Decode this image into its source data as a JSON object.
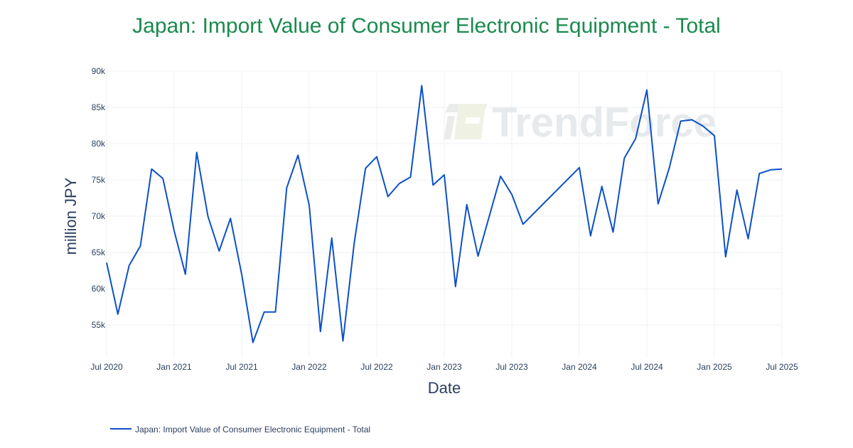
{
  "chart_data": {
    "type": "line",
    "title": "Japan: Import Value of Consumer Electronic Equipment - Total",
    "xlabel": "Date",
    "ylabel": "million JPY",
    "x_tick_labels": [
      "Jul 2020",
      "Jan 2021",
      "Jul 2021",
      "Jan 2022",
      "Jul 2022",
      "Jan 2023",
      "Jul 2023",
      "Jan 2024",
      "Jul 2024",
      "Jan 2025",
      "Jul 2025"
    ],
    "y_tick_labels": [
      "55k",
      "60k",
      "65k",
      "70k",
      "75k",
      "80k",
      "85k",
      "90k"
    ],
    "y_ticks": [
      55000,
      60000,
      65000,
      70000,
      75000,
      80000,
      85000,
      90000
    ],
    "ylim": [
      50500,
      90000
    ],
    "xlim": [
      "2020-07",
      "2025-07"
    ],
    "grid": true,
    "legend_position": "bottom-left",
    "color": "#0b50c8",
    "series": [
      {
        "name": "Japan: Import Value of Consumer Electronic Equipment - Total",
        "x": [
          "2020-07",
          "2020-08",
          "2020-09",
          "2020-10",
          "2020-11",
          "2020-12",
          "2021-01",
          "2021-02",
          "2021-03",
          "2021-04",
          "2021-05",
          "2021-06",
          "2021-07",
          "2021-08",
          "2021-09",
          "2021-10",
          "2021-11",
          "2021-12",
          "2022-01",
          "2022-02",
          "2022-03",
          "2022-04",
          "2022-05",
          "2022-06",
          "2022-07",
          "2022-08",
          "2022-09",
          "2022-10",
          "2022-11",
          "2022-12",
          "2023-01",
          "2023-02",
          "2023-03",
          "2023-04",
          "2023-05",
          "2023-06",
          "2023-07",
          "2023-08",
          "2024-01",
          "2024-02",
          "2024-03",
          "2024-04",
          "2024-05",
          "2024-06",
          "2024-07",
          "2024-08",
          "2024-09",
          "2024-10",
          "2024-11",
          "2024-12",
          "2025-01",
          "2025-02",
          "2025-03",
          "2025-04",
          "2025-05",
          "2025-06",
          "2025-07"
        ],
        "values": [
          63600,
          56500,
          63200,
          65900,
          76500,
          75200,
          68000,
          62000,
          78800,
          70000,
          65200,
          69700,
          62000,
          52600,
          56800,
          56800,
          73900,
          78400,
          71500,
          54100,
          67000,
          52800,
          66300,
          76600,
          78200,
          72700,
          74500,
          75400,
          88000,
          74300,
          75700,
          60300,
          71600,
          64500,
          70000,
          75500,
          73000,
          68900,
          76700,
          67300,
          74100,
          67800,
          78000,
          80700,
          87400,
          71700,
          76700,
          83100,
          83300,
          82400,
          81100,
          64400,
          73600,
          66900,
          75900,
          76400,
          76500
        ]
      }
    ]
  },
  "watermark": {
    "text": "TrendForce"
  }
}
